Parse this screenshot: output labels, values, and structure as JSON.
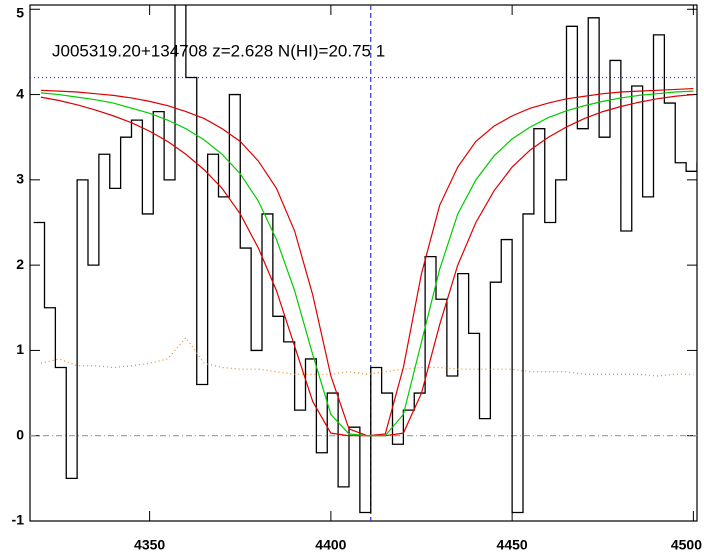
{
  "chart_data": {
    "type": "line",
    "annotation": "J005319.20+134708 z=2.628 N(HI)=20.75 1",
    "xlim": [
      4317,
      4501
    ],
    "ylim": [
      -1,
      5.05
    ],
    "xticks": [
      4350,
      4400,
      4450,
      4500
    ],
    "yticks": [
      -1,
      0,
      1,
      2,
      3,
      4,
      5
    ],
    "series": [
      {
        "color": "#000000",
        "style": "step",
        "width": 1.3,
        "x": [
          4318,
          4321,
          4324,
          4327,
          4330,
          4333,
          4336,
          4339,
          4342,
          4345,
          4348,
          4351,
          4354,
          4357,
          4360,
          4363,
          4366,
          4369,
          4372,
          4375,
          4378,
          4381,
          4384,
          4387,
          4390,
          4393,
          4396,
          4399,
          4402,
          4405,
          4408,
          4411,
          4414,
          4417,
          4420,
          4423,
          4426,
          4429,
          4432,
          4435,
          4438,
          4441,
          4444,
          4447,
          4450,
          4453,
          4456,
          4459,
          4462,
          4465,
          4468,
          4471,
          4474,
          4477,
          4480,
          4483,
          4486,
          4489,
          4492,
          4495,
          4498,
          4501
        ],
        "values": [
          2.5,
          1.5,
          0.8,
          -0.5,
          3.0,
          2.0,
          3.3,
          2.9,
          3.5,
          3.7,
          2.6,
          3.8,
          3.0,
          5.1,
          4.2,
          0.6,
          3.3,
          2.8,
          4.0,
          2.2,
          1.0,
          2.6,
          1.4,
          1.1,
          0.3,
          0.9,
          -0.2,
          0.5,
          -0.6,
          0.1,
          -0.9,
          0.8,
          0.5,
          -0.1,
          0.3,
          0.5,
          2.1,
          1.6,
          0.7,
          1.9,
          1.2,
          0.2,
          1.8,
          2.3,
          -0.9,
          2.6,
          3.6,
          2.5,
          3.0,
          4.8,
          3.6,
          4.9,
          3.5,
          4.4,
          2.4,
          4.1,
          2.8,
          4.7,
          3.9,
          3.2,
          3.1,
          3.2
        ]
      },
      {
        "color": "#e08a2c",
        "style": "dotted",
        "width": 1.2,
        "x": [
          4320,
          4325,
          4330,
          4335,
          4340,
          4345,
          4350,
          4355,
          4360,
          4365,
          4370,
          4375,
          4380,
          4385,
          4390,
          4395,
          4400,
          4405,
          4410,
          4415,
          4420,
          4425,
          4430,
          4435,
          4440,
          4445,
          4450,
          4455,
          4460,
          4465,
          4470,
          4475,
          4480,
          4485,
          4490,
          4495,
          4500
        ],
        "values": [
          0.85,
          0.9,
          0.82,
          0.82,
          0.8,
          0.82,
          0.85,
          0.9,
          1.15,
          0.85,
          0.8,
          0.78,
          0.78,
          0.75,
          0.72,
          0.72,
          0.72,
          0.75,
          0.72,
          0.75,
          0.78,
          0.8,
          0.8,
          0.78,
          0.78,
          0.78,
          0.78,
          0.75,
          0.75,
          0.75,
          0.72,
          0.72,
          0.72,
          0.72,
          0.7,
          0.72,
          0.72
        ]
      },
      {
        "color": "#dd0000",
        "style": "solid",
        "width": 1.2,
        "x": [
          4320,
          4325,
          4330,
          4335,
          4340,
          4345,
          4350,
          4355,
          4360,
          4365,
          4370,
          4375,
          4380,
          4385,
          4390,
          4395,
          4400,
          4405,
          4410,
          4415,
          4420,
          4425,
          4430,
          4435,
          4440,
          4445,
          4450,
          4455,
          4460,
          4465,
          4470,
          4475,
          4480,
          4485,
          4490,
          4495,
          4500
        ],
        "values": [
          3.97,
          3.93,
          3.88,
          3.82,
          3.75,
          3.67,
          3.57,
          3.45,
          3.3,
          3.12,
          2.9,
          2.6,
          2.2,
          1.7,
          1.05,
          0.4,
          0.03,
          0,
          0,
          0,
          0.03,
          0.5,
          1.3,
          2.0,
          2.5,
          2.87,
          3.15,
          3.35,
          3.5,
          3.62,
          3.72,
          3.8,
          3.86,
          3.91,
          3.95,
          3.98,
          4.0
        ]
      },
      {
        "color": "#dd0000",
        "style": "solid",
        "width": 1.2,
        "x": [
          4320,
          4325,
          4330,
          4335,
          4340,
          4345,
          4350,
          4355,
          4360,
          4365,
          4370,
          4375,
          4380,
          4385,
          4390,
          4395,
          4400,
          4405,
          4410,
          4415,
          4420,
          4425,
          4430,
          4435,
          4440,
          4445,
          4450,
          4455,
          4460,
          4465,
          4470,
          4475,
          4480,
          4485,
          4490,
          4495,
          4500
        ],
        "values": [
          4.05,
          4.04,
          4.03,
          4.01,
          3.99,
          3.96,
          3.92,
          3.87,
          3.8,
          3.72,
          3.6,
          3.45,
          3.22,
          2.9,
          2.4,
          1.65,
          0.7,
          0.08,
          0,
          0.02,
          0.8,
          1.9,
          2.7,
          3.15,
          3.45,
          3.63,
          3.75,
          3.84,
          3.9,
          3.95,
          3.98,
          4.01,
          4.03,
          4.04,
          4.05,
          4.06,
          4.07
        ]
      },
      {
        "color": "#00cc00",
        "style": "solid",
        "width": 1.2,
        "x": [
          4320,
          4325,
          4330,
          4335,
          4340,
          4345,
          4350,
          4355,
          4360,
          4365,
          4370,
          4375,
          4380,
          4385,
          4390,
          4395,
          4400,
          4405,
          4410,
          4415,
          4420,
          4425,
          4430,
          4435,
          4440,
          4445,
          4450,
          4455,
          4460,
          4465,
          4470,
          4475,
          4480,
          4485,
          4490,
          4495,
          4500
        ],
        "values": [
          4.02,
          4.0,
          3.97,
          3.94,
          3.9,
          3.84,
          3.78,
          3.7,
          3.6,
          3.47,
          3.3,
          3.07,
          2.75,
          2.3,
          1.7,
          0.95,
          0.25,
          0.02,
          0,
          0,
          0.25,
          1.1,
          1.95,
          2.6,
          3.0,
          3.28,
          3.48,
          3.62,
          3.73,
          3.81,
          3.87,
          3.92,
          3.96,
          3.99,
          4.01,
          4.03,
          4.04
        ]
      }
    ],
    "reference_lines": [
      {
        "axis": "y",
        "value": 4.2,
        "color": "#3333cc",
        "dash": "1,3"
      },
      {
        "axis": "x",
        "value": 4411,
        "color": "#3333cc",
        "dash": "5,3"
      },
      {
        "axis": "y",
        "value": 0,
        "color": "#999999",
        "dash": "6,3,1,3"
      }
    ]
  }
}
